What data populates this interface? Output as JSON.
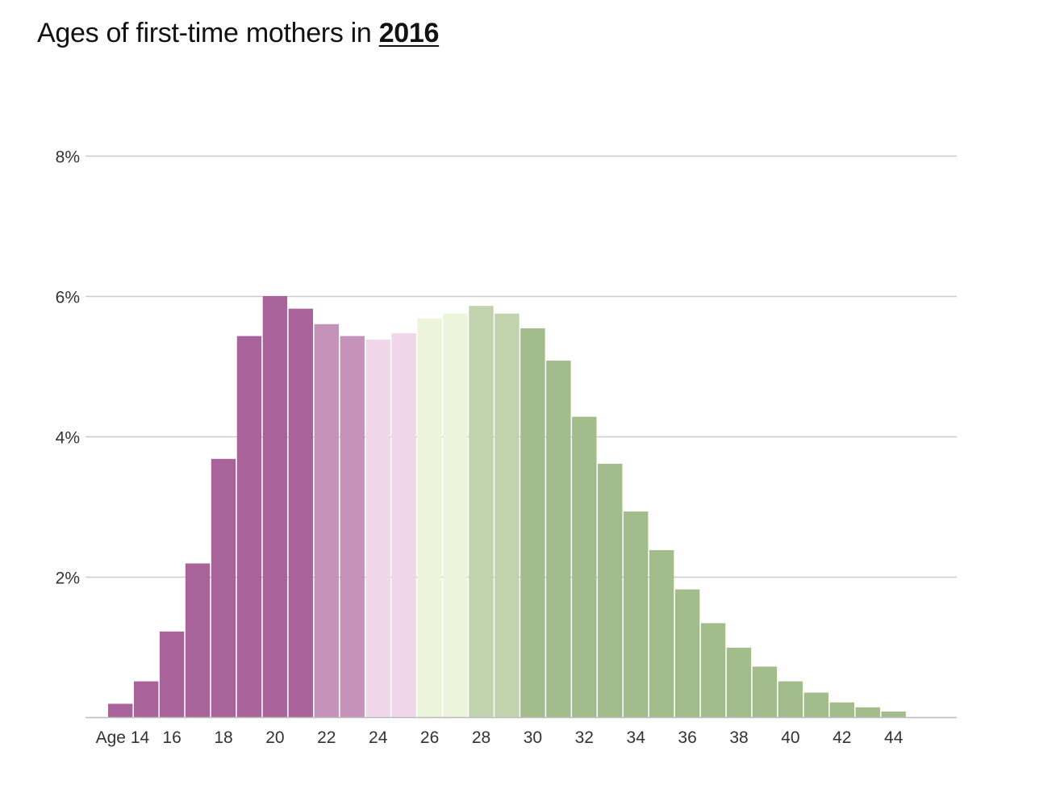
{
  "title": {
    "prefix": "Ages of first-time mothers in",
    "year": "2016"
  },
  "chart_data": {
    "type": "bar",
    "title": "Ages of first-time mothers in 2016",
    "xlabel": "",
    "ylabel": "",
    "ylim": [
      0,
      8
    ],
    "grid": true,
    "legend": "none",
    "y_ticks": [
      {
        "value": 2,
        "label": "2%"
      },
      {
        "value": 4,
        "label": "4%"
      },
      {
        "value": 6,
        "label": "6%"
      },
      {
        "value": 8,
        "label": "8%"
      }
    ],
    "x_ticks": [
      {
        "age": 14,
        "label": "Age 14"
      },
      {
        "age": 16,
        "label": "16"
      },
      {
        "age": 18,
        "label": "18"
      },
      {
        "age": 20,
        "label": "20"
      },
      {
        "age": 22,
        "label": "22"
      },
      {
        "age": 24,
        "label": "24"
      },
      {
        "age": 26,
        "label": "26"
      },
      {
        "age": 28,
        "label": "28"
      },
      {
        "age": 30,
        "label": "30"
      },
      {
        "age": 32,
        "label": "32"
      },
      {
        "age": 34,
        "label": "34"
      },
      {
        "age": 36,
        "label": "36"
      },
      {
        "age": 38,
        "label": "38"
      },
      {
        "age": 40,
        "label": "40"
      },
      {
        "age": 42,
        "label": "42"
      },
      {
        "age": 44,
        "label": "44"
      }
    ],
    "categories": [
      14,
      15,
      16,
      17,
      18,
      19,
      20,
      21,
      22,
      23,
      24,
      25,
      26,
      27,
      28,
      29,
      30,
      31,
      32,
      33,
      34,
      35,
      36,
      37,
      38,
      39,
      40,
      41,
      42,
      43,
      44
    ],
    "values": [
      0.19,
      0.51,
      1.22,
      2.19,
      3.68,
      5.43,
      6.0,
      5.82,
      5.6,
      5.43,
      5.38,
      5.47,
      5.68,
      5.75,
      5.86,
      5.75,
      5.54,
      5.08,
      4.28,
      3.61,
      2.93,
      2.38,
      1.82,
      1.34,
      0.99,
      0.72,
      0.51,
      0.35,
      0.21,
      0.14,
      0.08
    ],
    "colors": [
      "#a8639a",
      "#a8639a",
      "#a8639a",
      "#a8639a",
      "#a8639a",
      "#a8639a",
      "#a8639a",
      "#a8639a",
      "#c592b9",
      "#c592b9",
      "#f1d6e9",
      "#f1d6e9",
      "#ecf5dc",
      "#ecf5dc",
      "#c1d3ad",
      "#c1d3ad",
      "#a2bd8b",
      "#a2bd8b",
      "#a2bd8b",
      "#a2bd8b",
      "#a2bd8b",
      "#a2bd8b",
      "#a2bd8b",
      "#a2bd8b",
      "#a2bd8b",
      "#a2bd8b",
      "#a2bd8b",
      "#a2bd8b",
      "#a2bd8b",
      "#a2bd8b",
      "#a2bd8b"
    ]
  }
}
